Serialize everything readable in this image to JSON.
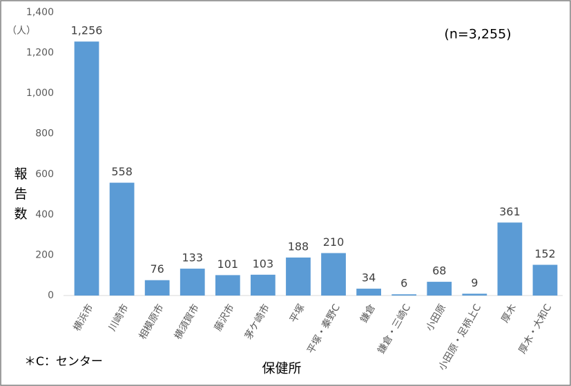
{
  "chart_data": {
    "type": "bar",
    "unit_label": "（人）",
    "y_label": "報告数",
    "x_label": "保健所",
    "annotation": "(n=3,255)",
    "footnote": "＊C：センター",
    "categories": [
      "横浜市",
      "川崎市",
      "相模原市",
      "横須賀市",
      "藤沢市",
      "茅ケ崎市",
      "平塚",
      "平塚・秦野C",
      "鎌倉",
      "鎌倉・三崎C",
      "小田原",
      "小田原・足柄上C",
      "厚木",
      "厚木・大和C"
    ],
    "values": [
      1256,
      558,
      76,
      133,
      101,
      103,
      188,
      210,
      34,
      6,
      68,
      9,
      361,
      152
    ],
    "value_labels": [
      "1,256",
      "558",
      "76",
      "133",
      "101",
      "103",
      "188",
      "210",
      "34",
      "6",
      "68",
      "9",
      "361",
      "152"
    ],
    "color": "#5b9bd5",
    "ylim": [
      0,
      1400
    ],
    "yticks": [
      0,
      200,
      400,
      600,
      800,
      {
        "value": 1000,
        "label": "1,000"
      },
      {
        "value": 1200,
        "label": "1,200"
      },
      {
        "value": 1400,
        "label": "1,400"
      }
    ],
    "grid": false
  }
}
